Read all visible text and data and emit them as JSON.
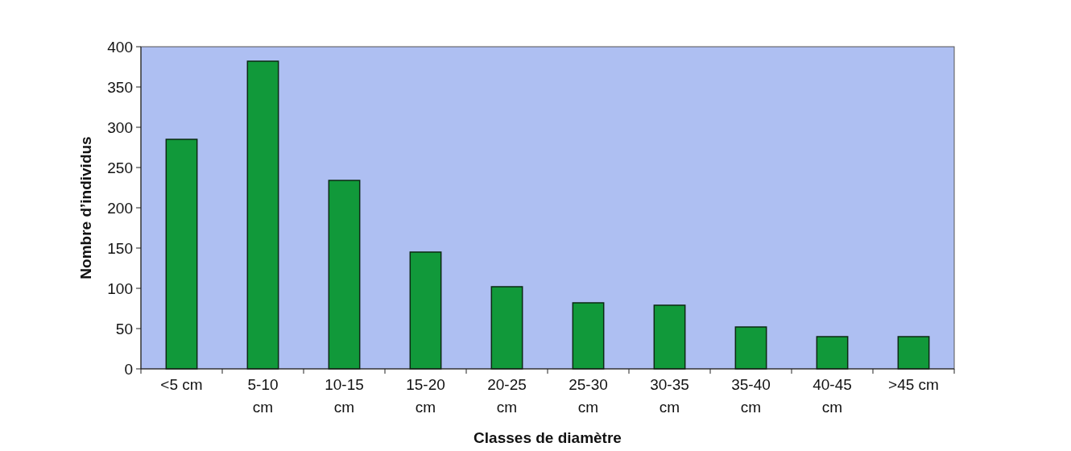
{
  "chart_data": {
    "type": "bar",
    "xlabel": "Classes de diamètre",
    "ylabel": "Nombre d’individus",
    "categories": [
      "<5 cm",
      "5-10 cm",
      "10-15 cm",
      "15-20 cm",
      "20-25 cm",
      "25-30 cm",
      "30-35 cm",
      "35-40 cm",
      "40-45 cm",
      ">45 cm"
    ],
    "values": [
      285,
      382,
      234,
      145,
      102,
      82,
      79,
      52,
      40,
      40
    ],
    "color": "#11993a",
    "ylim": [
      0,
      400
    ],
    "yticks": [
      0,
      50,
      100,
      150,
      200,
      250,
      300,
      350,
      400
    ],
    "grid": false
  }
}
